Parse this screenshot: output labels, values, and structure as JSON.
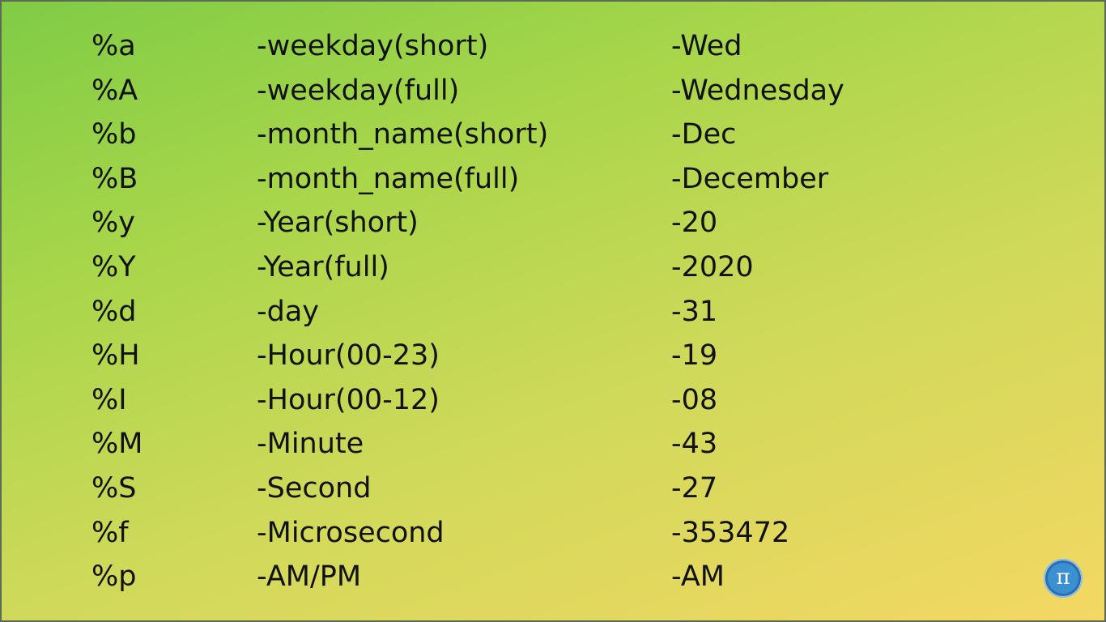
{
  "rows": [
    {
      "code": "%a",
      "description": "-weekday(short)",
      "example": "-Wed"
    },
    {
      "code": "%A",
      "description": "-weekday(full)",
      "example": "-Wednesday"
    },
    {
      "code": "%b",
      "description": "-month_name(short)",
      "example": "-Dec"
    },
    {
      "code": "%B",
      "description": "-month_name(full)",
      "example": "-December"
    },
    {
      "code": "%y",
      "description": "-Year(short)",
      "example": "-20"
    },
    {
      "code": "%Y",
      "description": "-Year(full)",
      "example": "-2020"
    },
    {
      "code": "%d",
      "description": "-day",
      "example": "-31"
    },
    {
      "code": "%H",
      "description": "-Hour(00-23)",
      "example": "-19"
    },
    {
      "code": "%I",
      "description": "-Hour(00-12)",
      "example": "-08"
    },
    {
      "code": "%M",
      "description": "-Minute",
      "example": "-43"
    },
    {
      "code": "%S",
      "description": "-Second",
      "example": "-27"
    },
    {
      "code": "%f",
      "description": "-Microsecond",
      "example": "-353472"
    },
    {
      "code": "%p",
      "description": "-AM/PM",
      "example": "-AM"
    }
  ],
  "logo": {
    "icon": "pi-logo-icon",
    "glyph": "π"
  },
  "colors": {
    "background_start": "#7fcc45",
    "background_end": "#f4d863",
    "text": "#111111",
    "logo": "#2c6fb0"
  }
}
